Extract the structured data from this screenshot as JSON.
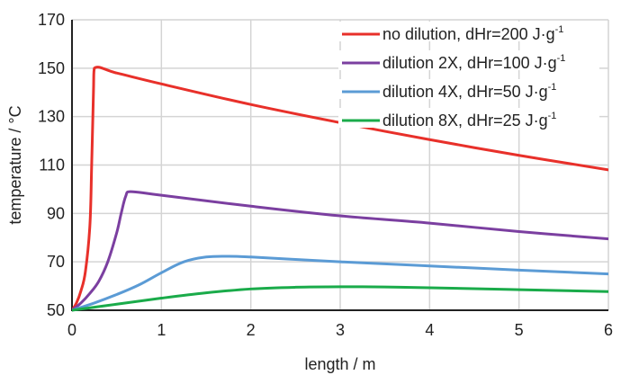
{
  "chart_data": {
    "type": "line",
    "xlabel": "length / m",
    "ylabel": "temperature / °C",
    "xlim": [
      0,
      6
    ],
    "ylim": [
      50,
      170
    ],
    "xticks": [
      "0",
      "1",
      "2",
      "3",
      "4",
      "5",
      "6"
    ],
    "yticks": [
      "50",
      "70",
      "90",
      "110",
      "130",
      "150",
      "170"
    ],
    "grid": true,
    "legend_position": "top-right",
    "series": [
      {
        "name": "no dilution, dHr=200 J·g",
        "name_superscript": "-1",
        "color": "#e8302a",
        "x": [
          0,
          0.05,
          0.1,
          0.15,
          0.2,
          0.22,
          0.24,
          0.25,
          0.5,
          1,
          2,
          3,
          4,
          5,
          6
        ],
        "y": [
          50,
          53,
          58,
          66,
          85,
          110,
          140,
          150,
          148,
          143.5,
          135,
          127.5,
          120.5,
          114,
          108
        ]
      },
      {
        "name": "dilution 2X, dHr=100 J·g",
        "name_superscript": "-1",
        "color": "#7b3fa0",
        "x": [
          0,
          0.1,
          0.2,
          0.3,
          0.4,
          0.5,
          0.55,
          0.6,
          0.65,
          1,
          2,
          3,
          4,
          5,
          6
        ],
        "y": [
          50,
          53,
          57,
          62,
          70,
          82,
          90,
          97,
          99,
          97.5,
          93,
          89,
          86,
          82.5,
          79.5
        ]
      },
      {
        "name": "dilution 4X, dHr=50 J·g",
        "name_superscript": "-1",
        "color": "#5b9bd5",
        "x": [
          0,
          0.25,
          0.5,
          0.75,
          1,
          1.25,
          1.5,
          1.75,
          2,
          2.5,
          3,
          4,
          5,
          6
        ],
        "y": [
          50,
          53,
          56.5,
          60.5,
          65.5,
          70,
          72,
          72.3,
          72,
          71,
          70,
          68.3,
          66.6,
          65
        ]
      },
      {
        "name": "dilution 8X, dHr=25 J·g",
        "name_superscript": "-1",
        "color": "#1aab4a",
        "x": [
          0,
          0.5,
          1,
          1.5,
          2,
          2.5,
          3,
          3.5,
          4,
          5,
          6
        ],
        "y": [
          50,
          52.5,
          55,
          57.2,
          58.8,
          59.5,
          59.7,
          59.6,
          59.3,
          58.5,
          57.7
        ]
      }
    ]
  },
  "colors": {
    "grid": "#d4d4d4",
    "axis": "#222222",
    "background": "#ffffff"
  }
}
